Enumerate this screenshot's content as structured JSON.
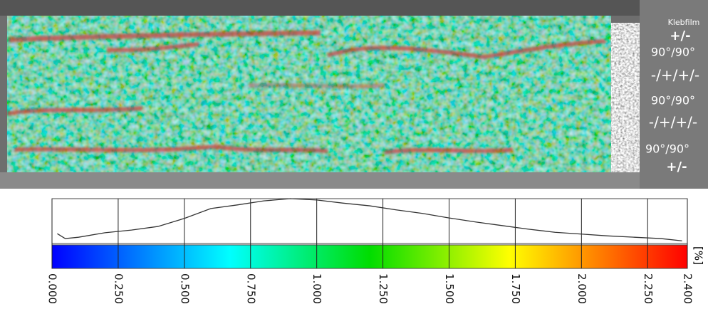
{
  "chart_data": {
    "type": "line",
    "annotations": [
      "Klebfilm",
      "+/-",
      "90°/90°",
      "-/+/+/-",
      "90°/90°",
      "-/+/+/-",
      "90°/90°",
      "+/-"
    ],
    "x": [
      0.02,
      0.05,
      0.1,
      0.2,
      0.3,
      0.4,
      0.5,
      0.6,
      0.7,
      0.8,
      0.9,
      1.0,
      1.1,
      1.2,
      1.3,
      1.4,
      1.5,
      1.6,
      1.7,
      1.8,
      1.9,
      2.0,
      2.1,
      2.2,
      2.3,
      2.38
    ],
    "values": [
      22,
      11,
      14,
      24,
      30,
      38,
      56,
      78,
      86,
      95,
      100,
      97,
      90,
      84,
      75,
      67,
      57,
      48,
      40,
      32,
      25,
      21,
      17,
      14,
      11,
      6
    ],
    "color": "#333333",
    "xlim": [
      0,
      2.4
    ],
    "ylim": [
      0,
      100
    ],
    "xticks": [
      {
        "value": 0,
        "label": "0.000"
      },
      {
        "value": 0.25,
        "label": "0.250"
      },
      {
        "value": 0.5,
        "label": "0.500"
      },
      {
        "value": 0.75,
        "label": "0.750"
      },
      {
        "value": 1,
        "label": "1.000"
      },
      {
        "value": 1.25,
        "label": "1.250"
      },
      {
        "value": 1.5,
        "label": "1.500"
      },
      {
        "value": 1.75,
        "label": "1.750"
      },
      {
        "value": 2,
        "label": "2.000"
      },
      {
        "value": 2.25,
        "label": "2.250"
      },
      {
        "value": 2.4,
        "label": "2.400"
      }
    ],
    "x_unit": "[%]",
    "grid": true
  }
}
